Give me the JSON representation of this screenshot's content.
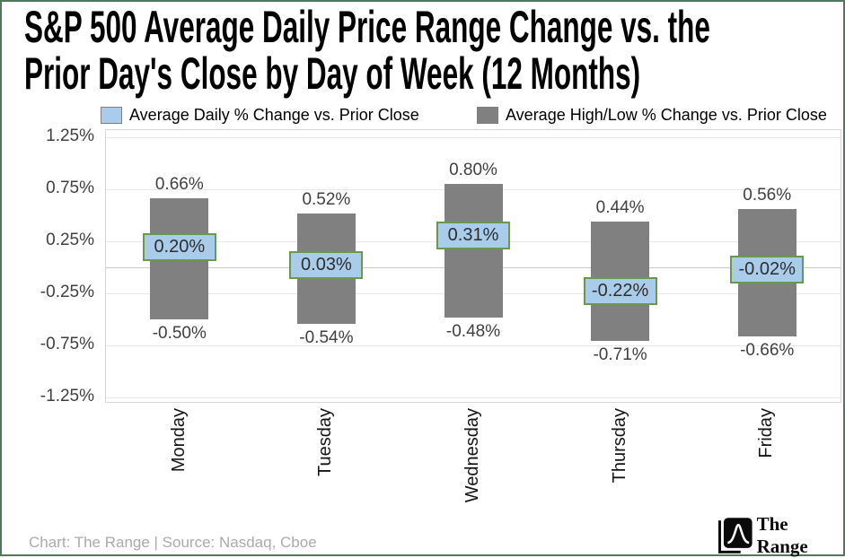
{
  "title": {
    "line1": "S&P 500 Average Daily Price Range Change vs. the",
    "line2": "Prior Day's Close by Day of Week (12 Months)"
  },
  "legend": {
    "items": [
      {
        "label": "Average Daily % Change vs. Prior Close",
        "color": "#A9CCEA"
      },
      {
        "label": "Average High/Low % Change vs. Prior Close",
        "color": "#808080"
      }
    ]
  },
  "chart_data": {
    "type": "bar",
    "subtype": "floating-range-bars-with-average-labels",
    "title": "S&P 500 Average Daily Price Range Change vs. the Prior Day's Close by Day of Week (12 Months)",
    "categories": [
      "Monday",
      "Tuesday",
      "Wednesday",
      "Thursday",
      "Friday"
    ],
    "series": [
      {
        "name": "Average Daily % Change vs. Prior Close",
        "values": [
          0.2,
          0.03,
          0.31,
          -0.22,
          -0.02
        ],
        "labels": [
          "0.20%",
          "0.03%",
          "0.31%",
          "-0.22%",
          "-0.02%"
        ],
        "color": "#A9CCEA",
        "label_border_color": "#67994F",
        "render": "boxed-label-at-value"
      },
      {
        "name": "Average High/Low % Change vs. Prior Close",
        "high": [
          0.66,
          0.52,
          0.8,
          0.44,
          0.56
        ],
        "low": [
          -0.5,
          -0.54,
          -0.48,
          -0.71,
          -0.66
        ],
        "high_labels": [
          "0.66%",
          "0.52%",
          "0.80%",
          "0.44%",
          "0.56%"
        ],
        "low_labels": [
          "-0.50%",
          "-0.54%",
          "-0.48%",
          "-0.71%",
          "-0.66%"
        ],
        "color": "#808080",
        "render": "floating-bar"
      }
    ],
    "xlabel": "",
    "ylabel": "",
    "yticks": [
      1.25,
      0.75,
      0.25,
      -0.25,
      -0.75,
      -1.25
    ],
    "ytick_labels": [
      "1.25%",
      "0.75%",
      "0.25%",
      "-0.25%",
      "-0.75%",
      "-1.25%"
    ],
    "ylim": [
      -1.3,
      1.32
    ],
    "grid": true,
    "legend_position": "top"
  },
  "footer": {
    "source_text": "Chart: The Range | Source: Nasdaq, Cboe",
    "logo_text": "The Range"
  },
  "colors": {
    "bar_gray": "#808080",
    "label_blue": "#A9CCEA",
    "label_border_green": "#67994F",
    "outer_border_green": "#4E7A5B",
    "axis_text": "#404040",
    "footer_text": "#ABABAB"
  }
}
